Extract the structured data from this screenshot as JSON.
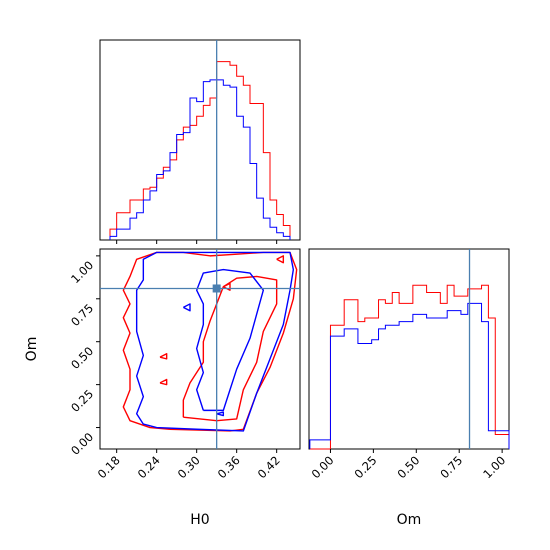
{
  "chart_data": [
    {
      "type": "histogram",
      "panel": "H0 marginal",
      "xlim": [
        0.155,
        0.455
      ],
      "bin_edges": [
        0.17,
        0.18,
        0.19,
        0.2,
        0.21,
        0.22,
        0.23,
        0.24,
        0.25,
        0.26,
        0.27,
        0.28,
        0.29,
        0.3,
        0.31,
        0.32,
        0.33,
        0.34,
        0.35,
        0.36,
        0.37,
        0.38,
        0.39,
        0.4,
        0.41,
        0.42,
        0.43,
        0.44
      ],
      "truth": 0.33,
      "series": [
        {
          "color": "#ff0000",
          "counts": [
            0.06,
            0.15,
            0.15,
            0.22,
            0.22,
            0.28,
            0.29,
            0.34,
            0.4,
            0.44,
            0.55,
            0.62,
            0.63,
            0.68,
            0.74,
            0.78,
            0.98,
            0.98,
            0.96,
            0.9,
            0.85,
            0.75,
            0.75,
            0.48,
            0.22,
            0.14,
            0.08
          ]
        },
        {
          "color": "#0000ff",
          "counts": [
            0.02,
            0.06,
            0.06,
            0.12,
            0.15,
            0.22,
            0.27,
            0.36,
            0.38,
            0.48,
            0.58,
            0.59,
            0.78,
            0.76,
            0.87,
            0.88,
            0.88,
            0.85,
            0.84,
            0.68,
            0.62,
            0.42,
            0.23,
            0.12,
            0.07,
            0.04,
            0.02
          ]
        }
      ]
    },
    {
      "type": "contour",
      "panel": "H0 vs Om",
      "xlabel": "H0",
      "ylabel": "Om",
      "xlim": [
        0.155,
        0.455
      ],
      "ylim": [
        -0.125,
        1.04
      ],
      "xticks": [
        "0.18",
        "0.24",
        "0.30",
        "0.36",
        "0.42"
      ],
      "yticks": [
        "0.00",
        "0.25",
        "0.50",
        "0.75",
        "1.00"
      ],
      "truth": {
        "x": 0.33,
        "y": 0.81
      },
      "series": [
        {
          "color": "#ff0000",
          "contours": [
            [
              [
                0.26,
                -0.01
              ],
              [
                0.35,
                -0.02
              ],
              [
                0.37,
                -0.01
              ],
              [
                0.39,
                0.2
              ],
              [
                0.41,
                0.35
              ],
              [
                0.43,
                0.55
              ],
              [
                0.445,
                0.75
              ],
              [
                0.45,
                0.92
              ],
              [
                0.44,
                1.02
              ],
              [
                0.4,
                1.02
              ],
              [
                0.36,
                1.01
              ],
              [
                0.32,
                1.0
              ],
              [
                0.28,
                1.02
              ],
              [
                0.24,
                1.02
              ],
              [
                0.21,
                0.98
              ],
              [
                0.2,
                0.88
              ],
              [
                0.19,
                0.8
              ],
              [
                0.2,
                0.72
              ],
              [
                0.19,
                0.64
              ],
              [
                0.2,
                0.55
              ],
              [
                0.19,
                0.45
              ],
              [
                0.2,
                0.34
              ],
              [
                0.2,
                0.22
              ],
              [
                0.19,
                0.12
              ],
              [
                0.2,
                0.04
              ],
              [
                0.23,
                0.0
              ],
              [
                0.26,
                -0.01
              ]
            ],
            [
              [
                0.28,
                0.06
              ],
              [
                0.33,
                0.04
              ],
              [
                0.36,
                0.05
              ],
              [
                0.37,
                0.22
              ],
              [
                0.39,
                0.38
              ],
              [
                0.4,
                0.56
              ],
              [
                0.42,
                0.72
              ],
              [
                0.42,
                0.86
              ],
              [
                0.39,
                0.88
              ],
              [
                0.36,
                0.87
              ],
              [
                0.34,
                0.82
              ],
              [
                0.33,
                0.72
              ],
              [
                0.32,
                0.62
              ],
              [
                0.31,
                0.5
              ],
              [
                0.31,
                0.38
              ],
              [
                0.29,
                0.26
              ],
              [
                0.28,
                0.16
              ],
              [
                0.28,
                0.06
              ]
            ],
            [
              [
                0.245,
                0.41
              ],
              [
                0.255,
                0.4
              ],
              [
                0.255,
                0.43
              ],
              [
                0.245,
                0.41
              ]
            ],
            [
              [
                0.245,
                0.26
              ],
              [
                0.255,
                0.25
              ],
              [
                0.255,
                0.28
              ],
              [
                0.245,
                0.26
              ]
            ],
            [
              [
                0.34,
                0.82
              ],
              [
                0.35,
                0.84
              ],
              [
                0.35,
                0.8
              ],
              [
                0.34,
                0.82
              ]
            ],
            [
              [
                0.42,
                0.98
              ],
              [
                0.43,
                1.0
              ],
              [
                0.43,
                0.96
              ],
              [
                0.42,
                0.98
              ]
            ]
          ]
        },
        {
          "color": "#0000ff",
          "contours": [
            [
              [
                0.24,
                0.0
              ],
              [
                0.3,
                -0.01
              ],
              [
                0.37,
                -0.02
              ],
              [
                0.39,
                0.2
              ],
              [
                0.41,
                0.4
              ],
              [
                0.43,
                0.6
              ],
              [
                0.44,
                0.8
              ],
              [
                0.445,
                0.92
              ],
              [
                0.44,
                1.02
              ],
              [
                0.36,
                1.02
              ],
              [
                0.3,
                1.02
              ],
              [
                0.24,
                1.02
              ],
              [
                0.22,
                0.98
              ],
              [
                0.22,
                0.86
              ],
              [
                0.21,
                0.8
              ],
              [
                0.21,
                0.68
              ],
              [
                0.21,
                0.56
              ],
              [
                0.22,
                0.42
              ],
              [
                0.21,
                0.3
              ],
              [
                0.22,
                0.18
              ],
              [
                0.21,
                0.08
              ],
              [
                0.22,
                0.02
              ],
              [
                0.24,
                0.0
              ]
            ],
            [
              [
                0.31,
                0.1
              ],
              [
                0.34,
                0.1
              ],
              [
                0.35,
                0.22
              ],
              [
                0.36,
                0.34
              ],
              [
                0.38,
                0.52
              ],
              [
                0.39,
                0.66
              ],
              [
                0.4,
                0.8
              ],
              [
                0.38,
                0.9
              ],
              [
                0.34,
                0.92
              ],
              [
                0.31,
                0.9
              ],
              [
                0.3,
                0.8
              ],
              [
                0.31,
                0.72
              ],
              [
                0.31,
                0.6
              ],
              [
                0.3,
                0.46
              ],
              [
                0.31,
                0.32
              ],
              [
                0.3,
                0.22
              ],
              [
                0.31,
                0.1
              ]
            ],
            [
              [
                0.28,
                0.7
              ],
              [
                0.29,
                0.68
              ],
              [
                0.29,
                0.72
              ],
              [
                0.28,
                0.7
              ]
            ],
            [
              [
                0.33,
                0.08
              ],
              [
                0.34,
                0.07
              ],
              [
                0.34,
                0.09
              ],
              [
                0.33,
                0.08
              ]
            ]
          ]
        }
      ]
    },
    {
      "type": "histogram",
      "panel": "Om marginal",
      "xlabel": "Om",
      "xlim": [
        -0.125,
        1.04
      ],
      "xticks": [
        "0.00",
        "0.25",
        "0.50",
        "0.75",
        "1.00"
      ],
      "bin_edges": [
        -0.12,
        -0.04,
        0.0,
        0.04,
        0.08,
        0.12,
        0.16,
        0.2,
        0.24,
        0.28,
        0.32,
        0.36,
        0.4,
        0.44,
        0.48,
        0.52,
        0.56,
        0.6,
        0.64,
        0.68,
        0.72,
        0.76,
        0.8,
        0.84,
        0.88,
        0.92,
        0.96,
        1.0,
        1.04
      ],
      "truth": 0.81,
      "series": [
        {
          "color": "#ff0000",
          "counts": [
            0.0,
            0.0,
            0.68,
            0.68,
            0.82,
            0.82,
            0.7,
            0.72,
            0.72,
            0.82,
            0.8,
            0.86,
            0.8,
            0.8,
            0.9,
            0.9,
            0.86,
            0.86,
            0.8,
            0.9,
            0.84,
            0.84,
            0.88,
            0.88,
            0.9,
            0.72,
            0.08,
            0.08
          ]
        },
        {
          "color": "#0000ff",
          "counts": [
            0.05,
            0.05,
            0.62,
            0.62,
            0.66,
            0.66,
            0.58,
            0.58,
            0.6,
            0.66,
            0.68,
            0.68,
            0.7,
            0.7,
            0.74,
            0.74,
            0.72,
            0.72,
            0.72,
            0.76,
            0.76,
            0.74,
            0.8,
            0.8,
            0.7,
            0.1,
            0.1,
            0.1
          ]
        }
      ]
    }
  ]
}
